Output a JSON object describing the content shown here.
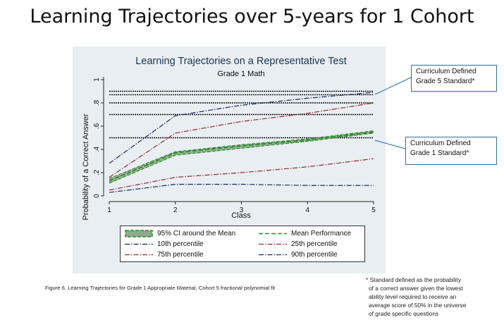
{
  "slide": {
    "title": "Learning Trajectories over 5-years for 1 Cohort",
    "caption": "Figure 6. Learning Trajectories for Grade 1 Appropriate Material, Cohort 5 fractional polynomial fit",
    "footnote_lines": [
      "* Standard defined as the probability",
      "of a correct answer given the lowest",
      "ability level required to receive an",
      "average score of 50% in the universe",
      "of grade specific questions"
    ]
  },
  "callouts": {
    "grade5_line1": "Curriculum Defined",
    "grade5_line2": "Grade 5 Standard*",
    "grade1_line1": "Curriculum Defined",
    "grade1_line2": "Grade 1 Standard*"
  },
  "colors": {
    "panel": "#e9eef2",
    "navy": "#1a2b5c",
    "maroon": "#8b2e34",
    "green": "#2e8b2e",
    "ci_fill": "#8faa8a",
    "title": "#1a3550",
    "callout_border": "#2b6f94"
  },
  "chart_data": {
    "type": "line",
    "title": "Learning Trajectories on a Representative Test",
    "subtitle": "Grade 1 Math",
    "xlabel": "Class",
    "ylabel": "Probability of a Correct Answer",
    "x": [
      1,
      2,
      3,
      4,
      5
    ],
    "x_ticks": [
      "1",
      "2",
      "3",
      "4",
      "5"
    ],
    "y_ticks": [
      "0",
      ".2",
      ".4",
      ".6",
      ".8",
      "1"
    ],
    "xlim": [
      1,
      5
    ],
    "ylim": [
      0,
      1
    ],
    "grid": false,
    "legend_position": "bottom",
    "series": [
      {
        "name": "Mean Performance",
        "values": [
          0.13,
          0.37,
          0.43,
          0.48,
          0.55
        ]
      },
      {
        "name": "10th percentile",
        "values": [
          0.03,
          0.1,
          0.1,
          0.09,
          0.09
        ]
      },
      {
        "name": "25th percentile",
        "values": [
          0.05,
          0.16,
          0.2,
          0.25,
          0.32
        ]
      },
      {
        "name": "75th percentile",
        "values": [
          0.16,
          0.54,
          0.64,
          0.71,
          0.8
        ]
      },
      {
        "name": "90th percentile",
        "values": [
          0.28,
          0.69,
          0.78,
          0.84,
          0.89
        ]
      }
    ],
    "ci_band": {
      "name": "95% CI around the Mean",
      "lower": [
        0.11,
        0.35,
        0.41,
        0.47,
        0.54
      ],
      "upper": [
        0.15,
        0.38,
        0.44,
        0.49,
        0.56
      ]
    },
    "reference_lines": [
      0.5,
      0.7,
      0.8,
      0.87,
      0.9
    ]
  }
}
